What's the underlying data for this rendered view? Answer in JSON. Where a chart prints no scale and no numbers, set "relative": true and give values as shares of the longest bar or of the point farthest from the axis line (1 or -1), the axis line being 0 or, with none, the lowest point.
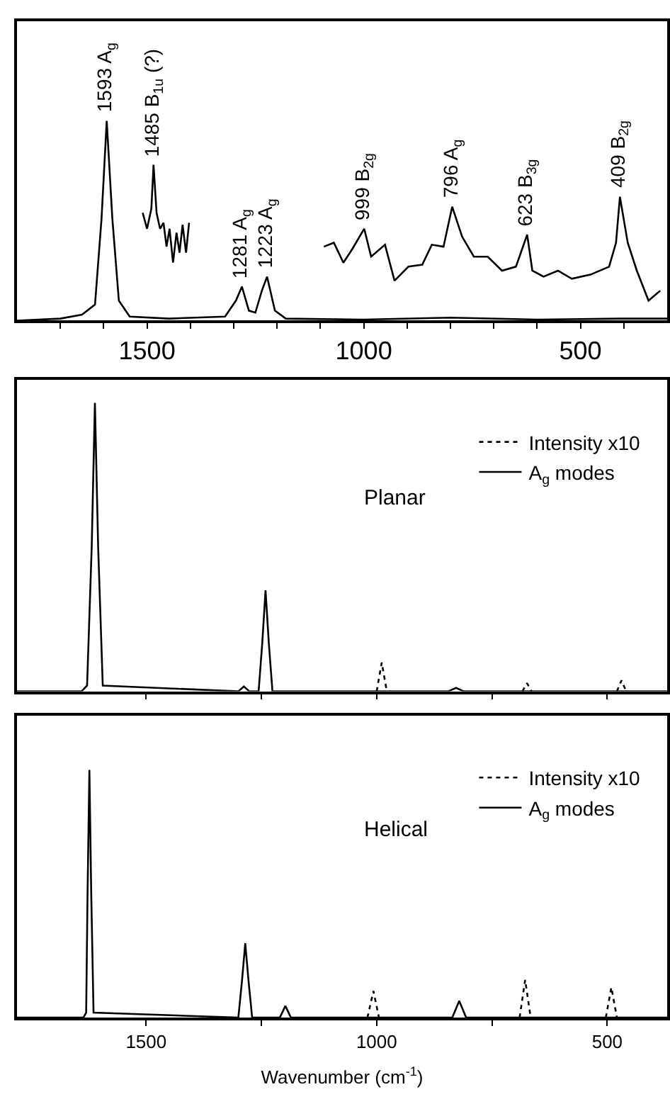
{
  "chart_data": [
    {
      "type": "line",
      "relative": true,
      "xlim": [
        1800,
        300
      ],
      "tick_labels": "x",
      "legend": false,
      "marker": "none",
      "xticks": [
        {
          "value": 1700,
          "label": null
        },
        {
          "value": 1600,
          "label": null
        },
        1500,
        {
          "value": 1400,
          "label": null
        },
        {
          "value": 1300,
          "label": null
        },
        {
          "value": 1200,
          "label": null
        },
        {
          "value": 1100,
          "label": null
        },
        1000,
        {
          "value": 900,
          "label": null
        },
        {
          "value": 800,
          "label": null
        },
        {
          "value": 700,
          "label": null
        },
        {
          "value": 600,
          "label": null
        },
        500,
        {
          "value": 400,
          "label": null
        }
      ],
      "series": [
        {
          "color": "#000000",
          "line_style": "solid",
          "x": [
            1800,
            1700,
            1650,
            1620,
            1605,
            1593,
            1580,
            1565,
            1540,
            1450,
            1320,
            1295,
            1281,
            1265,
            1250,
            1235,
            1223,
            1205,
            1180,
            1000,
            800,
            600,
            409,
            300
          ],
          "values": [
            0,
            0.01,
            0.03,
            0.08,
            0.51,
            1.0,
            0.51,
            0.1,
            0.02,
            0.01,
            0.02,
            0.1,
            0.17,
            0.05,
            0.04,
            0.15,
            0.22,
            0.05,
            0.01,
            0.005,
            0.015,
            0.005,
            0.01,
            0.01
          ]
        },
        {
          "color": "#000000",
          "line_style": "solid",
          "x": [
            1510,
            1500,
            1490,
            1485,
            1478,
            1470,
            1462,
            1455,
            1448,
            1440,
            1432,
            1425,
            1418,
            1410,
            1403
          ],
          "values": [
            0.54,
            0.46,
            0.56,
            0.78,
            0.54,
            0.46,
            0.49,
            0.37,
            0.46,
            0.29,
            0.44,
            0.34,
            0.48,
            0.34,
            0.49
          ]
        },
        {
          "color": "#000000",
          "line_style": "solid",
          "x": [
            1092,
            1069,
            1047,
            1026,
            999,
            983,
            951,
            929,
            897,
            865,
            843,
            816,
            796,
            773,
            746,
            714,
            681,
            649,
            623,
            611,
            585,
            552,
            520,
            477,
            434,
            418,
            409,
            391,
            370,
            343,
            316
          ],
          "values": [
            0.37,
            0.39,
            0.29,
            0.36,
            0.46,
            0.32,
            0.38,
            0.2,
            0.27,
            0.28,
            0.38,
            0.37,
            0.57,
            0.42,
            0.32,
            0.32,
            0.25,
            0.27,
            0.43,
            0.25,
            0.22,
            0.25,
            0.21,
            0.23,
            0.27,
            0.39,
            0.62,
            0.39,
            0.25,
            0.1,
            0.15
          ]
        }
      ],
      "annotations": [
        {
          "text": "1593 A$_{g}$",
          "x": 1593,
          "y": 1.0
        },
        {
          "text": "1485 B$_{1u}$ (?)",
          "x": 1485,
          "y": 0.78
        },
        {
          "text": "1281 A$_{g}$",
          "x": 1281,
          "y": 0.17
        },
        {
          "text": "1223 A$_{g}$",
          "x": 1223,
          "y": 0.22
        },
        {
          "text": "999 B$_{2g}$",
          "x": 999,
          "y": 0.46
        },
        {
          "text": "796 A$_{g}$",
          "x": 796,
          "y": 0.57
        },
        {
          "text": "623 B$_{3g}$",
          "x": 623,
          "y": 0.43
        },
        {
          "text": "409 B$_{2g}$",
          "x": 409,
          "y": 0.62
        }
      ]
    },
    {
      "type": "line",
      "relative": true,
      "xlim": [
        1780,
        370
      ],
      "tick_labels": false,
      "legend": "top right",
      "marker": "none",
      "xticks": [
        {
          "value": 1500,
          "label": null
        },
        {
          "value": 1250,
          "label": null
        },
        {
          "value": 1000,
          "label": null
        },
        {
          "value": 750,
          "label": null
        },
        {
          "value": 500,
          "label": null
        }
      ],
      "series": [
        {
          "name": "Intensity x10",
          "color": "#000000",
          "line_style": "dotted",
          "x": [
            1000,
            989,
            978,
            830,
            684,
            674,
            664,
            560,
            479,
            469,
            459
          ],
          "values": [
            0,
            0.1,
            0,
            null,
            0,
            0.028,
            0,
            null,
            0,
            0.038,
            0
          ]
        },
        {
          "name": "A$_{g}$ modes",
          "color": "#000000",
          "line_style": "solid",
          "x": [
            1780,
            1640,
            1628,
            1618,
            1611,
            1604,
            1594,
            1300,
            1288,
            1276,
            1256,
            1248,
            1241,
            1234,
            1226,
            845,
            828,
            811,
            370
          ],
          "values": [
            0,
            0,
            0.02,
            0.5,
            1.0,
            0.5,
            0.02,
            0,
            0.017,
            0,
            0,
            0.17,
            0.35,
            0.17,
            0,
            0,
            0.012,
            0,
            0
          ]
        }
      ],
      "annotations": [
        "Planar"
      ]
    },
    {
      "type": "line",
      "relative": true,
      "xlim": [
        1780,
        370
      ],
      "tick_labels": "x",
      "legend": "top right",
      "marker": "none",
      "xlabel": "Wavenumber (cm$^{-1}$)",
      "xticks": [
        1500,
        {
          "value": 1250,
          "label": null
        },
        1000,
        {
          "value": 750,
          "label": null
        },
        500
      ],
      "series": [
        {
          "name": "Intensity x10",
          "color": "#000000",
          "line_style": "dotted",
          "x": [
            1020,
            1007,
            995,
            840,
            690,
            678,
            666,
            580,
            503,
            491,
            479
          ],
          "values": [
            0,
            0.107,
            0,
            null,
            0,
            0.152,
            0,
            null,
            0,
            0.122,
            0
          ]
        },
        {
          "name": "A$_{g}$ modes",
          "color": "#000000",
          "line_style": "solid",
          "x": [
            1780,
            1636,
            1630,
            1627,
            1623,
            1619,
            1614,
            1300,
            1292,
            1285,
            1278,
            1270,
            1210,
            1198,
            1186,
            836,
            821,
            806,
            370
          ],
          "values": [
            0,
            0,
            0.02,
            0.5,
            1.0,
            0.5,
            0.02,
            0,
            0.15,
            0.3,
            0.15,
            0,
            0,
            0.047,
            0,
            0,
            0.067,
            0,
            0
          ]
        }
      ],
      "annotations": [
        "Helical"
      ]
    }
  ]
}
